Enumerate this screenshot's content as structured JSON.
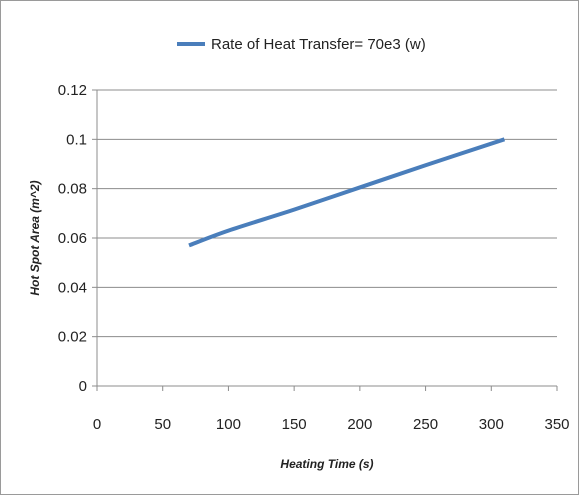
{
  "chart_data": {
    "type": "line",
    "title": "",
    "xlabel": "Heating Time (s)",
    "ylabel": "Hot Spot Area (m^2)",
    "xlim": [
      0,
      350
    ],
    "ylim": [
      0,
      0.12
    ],
    "xticks": [
      "0",
      "50",
      "100",
      "150",
      "200",
      "250",
      "300",
      "350"
    ],
    "yticks": [
      "0",
      "0.02",
      "0.04",
      "0.06",
      "0.08",
      "0.1",
      "0.12"
    ],
    "grid": "horizontal",
    "legend_position": "top",
    "series": [
      {
        "name": "Rate of Heat Transfer= 70e3 (w)",
        "color": "#4a7ebb",
        "x": [
          70,
          100,
          150,
          200,
          250,
          310
        ],
        "y": [
          0.057,
          0.063,
          0.0715,
          0.0805,
          0.0895,
          0.1
        ]
      }
    ]
  }
}
